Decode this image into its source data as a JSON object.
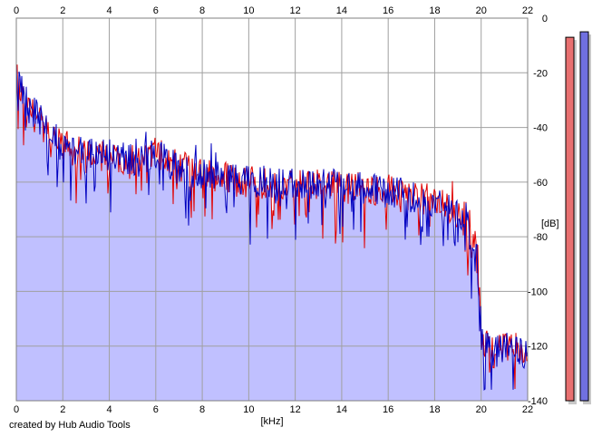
{
  "chart_data": {
    "type": "area",
    "xlabel": "[kHz]",
    "ylabel": "[dB]",
    "xlim": [
      0,
      22
    ],
    "ylim": [
      -140,
      0
    ],
    "x_ticks": [
      "0",
      "2",
      "4",
      "6",
      "8",
      "10",
      "12",
      "14",
      "16",
      "18",
      "20",
      "22"
    ],
    "y_ticks": [
      "0",
      "-20",
      "-40",
      "-60",
      "-80",
      "-100",
      "-120",
      "-140"
    ],
    "grid": true,
    "series": [
      {
        "channel": "left",
        "color": "#e00000",
        "x": [
          0,
          0.2,
          0.5,
          1,
          1.5,
          2,
          3,
          4,
          5,
          6,
          7,
          8,
          9,
          10,
          11,
          12,
          13,
          14,
          15,
          16,
          17,
          18,
          19,
          19.5,
          19.8,
          20,
          20.5,
          21,
          21.5,
          22
        ],
        "y": [
          -22,
          -27,
          -33,
          -38,
          -44,
          -47,
          -50,
          -51,
          -52,
          -49,
          -55,
          -57,
          -58,
          -60,
          -60,
          -61,
          -61,
          -62,
          -62,
          -63,
          -65,
          -67,
          -72,
          -78,
          -86,
          -118,
          -122,
          -121,
          -121,
          -123
        ]
      },
      {
        "channel": "right",
        "color": "#0000c0",
        "x": [
          0,
          0.2,
          0.5,
          1,
          1.5,
          2,
          3,
          4,
          5,
          6,
          7,
          8,
          9,
          10,
          11,
          12,
          13,
          14,
          15,
          16,
          17,
          18,
          19,
          19.5,
          19.8,
          20,
          20.5,
          21,
          21.5,
          22
        ],
        "y": [
          -20,
          -26,
          -32,
          -37,
          -43,
          -47,
          -50,
          -50,
          -52,
          -50,
          -55,
          -57,
          -58,
          -60,
          -60,
          -61,
          -61,
          -62,
          -62,
          -63,
          -65,
          -67,
          -72,
          -79,
          -88,
          -119,
          -122,
          -121,
          -120,
          -123
        ]
      }
    ],
    "fill_color": "#c0c0ff",
    "level_meters": [
      {
        "channel": "left",
        "color": "#e87070",
        "level_db": -7
      },
      {
        "channel": "right",
        "color": "#7070e0",
        "level_db": -5
      }
    ]
  },
  "footer": {
    "credit": "created by Hub Audio Tools"
  }
}
